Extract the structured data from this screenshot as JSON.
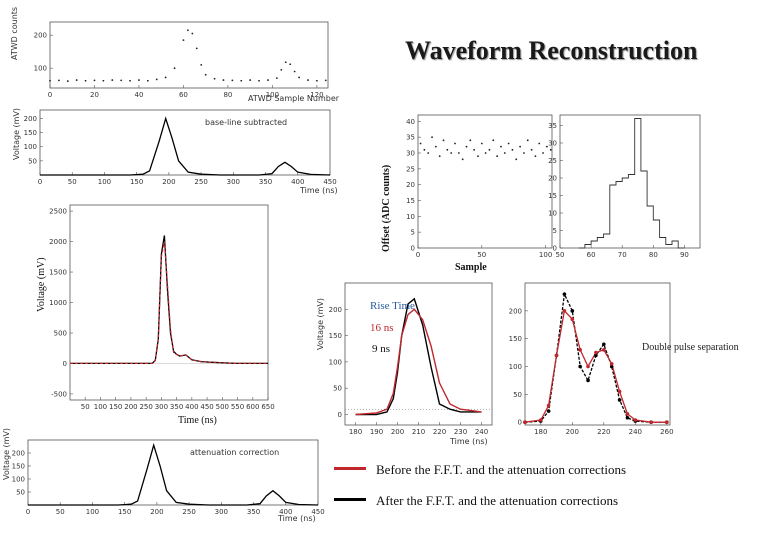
{
  "title": "Waveform Reconstruction",
  "chart_data": [
    {
      "id": "p1",
      "type": "scatter",
      "ylabel": "ATWD counts",
      "xlabel": "ATWD Sample Number",
      "xticks": [
        "0",
        "20",
        "40",
        "60",
        "80",
        "100",
        "120"
      ],
      "yticks": [
        "200",
        "100"
      ],
      "x": [
        0,
        4,
        8,
        12,
        16,
        20,
        24,
        28,
        32,
        36,
        40,
        44,
        48,
        52,
        56,
        60,
        62,
        64,
        66,
        68,
        70,
        74,
        78,
        82,
        86,
        90,
        94,
        98,
        102,
        104,
        106,
        108,
        110,
        112,
        116,
        120,
        124
      ],
      "y": [
        62,
        63,
        61,
        64,
        62,
        63,
        62,
        64,
        63,
        62,
        64,
        62,
        66,
        72,
        100,
        185,
        215,
        205,
        160,
        110,
        80,
        68,
        64,
        63,
        62,
        64,
        62,
        64,
        70,
        95,
        118,
        112,
        90,
        72,
        64,
        62,
        63
      ]
    },
    {
      "id": "p2",
      "type": "line",
      "ylabel": "Voltage (mV)",
      "xlabel": "Time (ns)",
      "annotation": "base-line subtracted",
      "xticks": [
        "0",
        "50",
        "100",
        "150",
        "200",
        "250",
        "300",
        "350",
        "400",
        "450"
      ],
      "yticks": [
        "200",
        "150",
        "100",
        "50"
      ],
      "x": [
        0,
        60,
        100,
        140,
        160,
        170,
        185,
        195,
        205,
        215,
        230,
        250,
        280,
        340,
        360,
        370,
        380,
        390,
        400,
        420,
        450
      ],
      "y": [
        0,
        0,
        0,
        0,
        3,
        15,
        120,
        200,
        130,
        50,
        10,
        3,
        0,
        0,
        5,
        30,
        45,
        30,
        10,
        2,
        0
      ]
    },
    {
      "id": "p3",
      "type": "line",
      "ylabel": "Voltage (mV)",
      "xlabel": "Time (ns)",
      "xticks": [
        "50",
        "100",
        "150",
        "200",
        "250",
        "300",
        "350",
        "400",
        "450",
        "500",
        "550",
        "600",
        "650"
      ],
      "yticks": [
        "2500",
        "2000",
        "1500",
        "1000",
        "500",
        "0",
        "-500"
      ],
      "series": [
        {
          "x": [
            0,
            150,
            200,
            250,
            270,
            280,
            290,
            300,
            310,
            320,
            330,
            340,
            350,
            360,
            380,
            400,
            430,
            460,
            500,
            550,
            650
          ],
          "y": [
            0,
            0,
            0,
            0,
            0,
            50,
            400,
            1800,
            2100,
            1200,
            500,
            200,
            150,
            120,
            140,
            60,
            30,
            20,
            10,
            0,
            0
          ]
        },
        {
          "x": [
            0,
            150,
            200,
            250,
            270,
            280,
            290,
            300,
            310,
            320,
            330,
            340,
            350,
            360,
            380,
            400,
            430,
            460,
            500,
            550,
            650
          ],
          "y": [
            0,
            0,
            0,
            0,
            0,
            50,
            420,
            1750,
            2000,
            1300,
            550,
            180,
            150,
            120,
            140,
            60,
            30,
            20,
            10,
            0,
            0
          ]
        }
      ]
    },
    {
      "id": "p4",
      "type": "scatter",
      "ylabel": "Offset (ADC counts)",
      "xlabel": "Sample",
      "xticks": [
        "0",
        "50",
        "100"
      ],
      "yticks": [
        "40",
        "35",
        "30",
        "25",
        "20",
        "15",
        "10",
        "5",
        "0"
      ],
      "x": [
        2,
        5,
        8,
        11,
        14,
        17,
        20,
        23,
        26,
        29,
        32,
        35,
        38,
        41,
        44,
        47,
        50,
        53,
        56,
        59,
        62,
        65,
        68,
        71,
        74,
        77,
        80,
        83,
        86,
        89,
        92,
        95,
        98,
        101,
        104
      ],
      "y": [
        33,
        31,
        30,
        35,
        32,
        29,
        34,
        31,
        30,
        33,
        30,
        28,
        32,
        34,
        31,
        29,
        33,
        30,
        31,
        34,
        29,
        32,
        30,
        33,
        31,
        28,
        32,
        30,
        34,
        31,
        29,
        33,
        30,
        32,
        31
      ]
    },
    {
      "id": "p5",
      "type": "bar",
      "xticks": [
        "50",
        "60",
        "70",
        "80",
        "90"
      ],
      "yticks": [
        "35",
        "30",
        "25",
        "20",
        "15",
        "10",
        "5",
        "0"
      ],
      "bins": [
        56,
        58,
        60,
        62,
        64,
        66,
        68,
        70,
        72,
        74,
        76,
        78,
        80,
        82,
        84,
        86,
        88
      ],
      "values": [
        0,
        1,
        2,
        3,
        4,
        18,
        19,
        20,
        21,
        37,
        22,
        12,
        8,
        3,
        1,
        2,
        0
      ]
    },
    {
      "id": "p6",
      "type": "line",
      "ylabel": "Voltage (mV)",
      "xlabel": "Time (ns)",
      "xticks": [
        "180",
        "190",
        "200",
        "210",
        "220",
        "230",
        "240"
      ],
      "yticks": [
        "200",
        "150",
        "100",
        "50",
        "0"
      ],
      "annotations": [
        "Rise Time",
        "16 ns",
        "9 ns"
      ],
      "series": [
        {
          "color": "#000000",
          "x": [
            180,
            190,
            195,
            198,
            200,
            202,
            205,
            208,
            212,
            216,
            220,
            225,
            230,
            240
          ],
          "y": [
            0,
            0,
            5,
            30,
            80,
            150,
            210,
            220,
            170,
            90,
            20,
            10,
            5,
            5
          ]
        },
        {
          "color": "#c0272d",
          "x": [
            180,
            190,
            195,
            198,
            200,
            202,
            205,
            208,
            212,
            216,
            220,
            225,
            230,
            240
          ],
          "y": [
            0,
            3,
            10,
            40,
            90,
            150,
            190,
            200,
            180,
            130,
            60,
            20,
            10,
            5
          ]
        }
      ]
    },
    {
      "id": "p7",
      "type": "line",
      "xticks": [
        "180",
        "200",
        "220",
        "240",
        "260"
      ],
      "yticks": [
        "200",
        "150",
        "100",
        "50",
        "0"
      ],
      "annotation": "Double pulse separation",
      "series": [
        {
          "color": "#000000",
          "x": [
            170,
            180,
            185,
            190,
            195,
            200,
            205,
            210,
            215,
            220,
            225,
            230,
            235,
            240,
            250,
            260
          ],
          "y": [
            0,
            2,
            20,
            120,
            230,
            200,
            100,
            75,
            120,
            140,
            100,
            40,
            8,
            2,
            0,
            0
          ]
        },
        {
          "color": "#c0272d",
          "x": [
            170,
            180,
            185,
            190,
            195,
            200,
            205,
            210,
            215,
            220,
            225,
            230,
            235,
            240,
            250,
            260
          ],
          "y": [
            0,
            4,
            30,
            120,
            200,
            185,
            130,
            100,
            125,
            130,
            105,
            55,
            15,
            4,
            0,
            0
          ]
        }
      ]
    },
    {
      "id": "p8",
      "type": "line",
      "ylabel": "Voltage (mV)",
      "xlabel": "Time (ns)",
      "annotation": "attenuation correction",
      "xticks": [
        "0",
        "50",
        "100",
        "150",
        "200",
        "250",
        "300",
        "350",
        "400",
        "450"
      ],
      "yticks": [
        "200",
        "150",
        "100",
        "50"
      ],
      "x": [
        0,
        60,
        100,
        140,
        160,
        170,
        185,
        195,
        205,
        215,
        230,
        250,
        280,
        340,
        360,
        370,
        380,
        390,
        400,
        420,
        450
      ],
      "y": [
        0,
        0,
        0,
        0,
        3,
        15,
        140,
        230,
        150,
        55,
        10,
        3,
        0,
        0,
        5,
        35,
        55,
        35,
        10,
        2,
        0
      ]
    }
  ],
  "legend": [
    {
      "label": "Before the F.F.T. and the attenuation corrections",
      "color": "#c0272d"
    },
    {
      "label": "After the F.F.T. and the attenuation corrections",
      "color": "#000000"
    }
  ]
}
